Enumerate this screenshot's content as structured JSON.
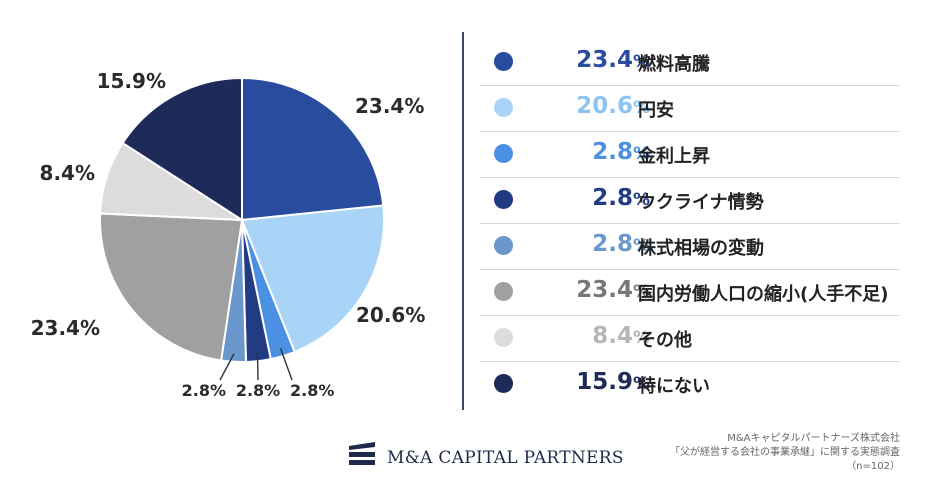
{
  "chart_data": {
    "type": "pie",
    "slices": [
      {
        "label": "燃料高騰",
        "value": 23.4,
        "display": "23.4",
        "color": "#2a4c9e"
      },
      {
        "label": "円安",
        "value": 20.6,
        "display": "20.6",
        "color": "#a9d4f8"
      },
      {
        "label": "金利上昇",
        "value": 2.8,
        "display": "2.8",
        "color": "#4b90e3"
      },
      {
        "label": "ウクライナ情勢",
        "value": 2.8,
        "display": "2.8",
        "color": "#223c84"
      },
      {
        "label": "株式相場の変動",
        "value": 2.8,
        "display": "2.8",
        "color": "#6a98cc"
      },
      {
        "label": "国内労働人口の縮小(人手不足)",
        "value": 23.4,
        "display": "23.4",
        "color": "#a0a0a0"
      },
      {
        "label": "その他",
        "value": 8.4,
        "display": "8.4",
        "color": "#dcdcdc"
      },
      {
        "label": "特にない",
        "value": 15.9,
        "display": "15.9",
        "color": "#1e2b58"
      }
    ],
    "pie_labels": [
      "23.4%",
      "20.6%",
      "2.8%",
      "2.8%",
      "2.8%",
      "23.4%",
      "8.4%",
      "15.9%"
    ],
    "percent_sign": "%",
    "legend_pct_colors": [
      "#2a4c9e",
      "#8cc3f0",
      "#4b90e3",
      "#223c84",
      "#6a98cc",
      "#777777",
      "#b5b5b5",
      "#1e2b58"
    ],
    "legend_position": "right"
  },
  "brand": {
    "name": "M&A CAPITAL PARTNERS"
  },
  "source": {
    "line1": "M&Aキャピタルパートナーズ株式会社",
    "line2": "「父が経営する会社の事業承継」に関する実態調査",
    "line3": "（n=102）"
  }
}
